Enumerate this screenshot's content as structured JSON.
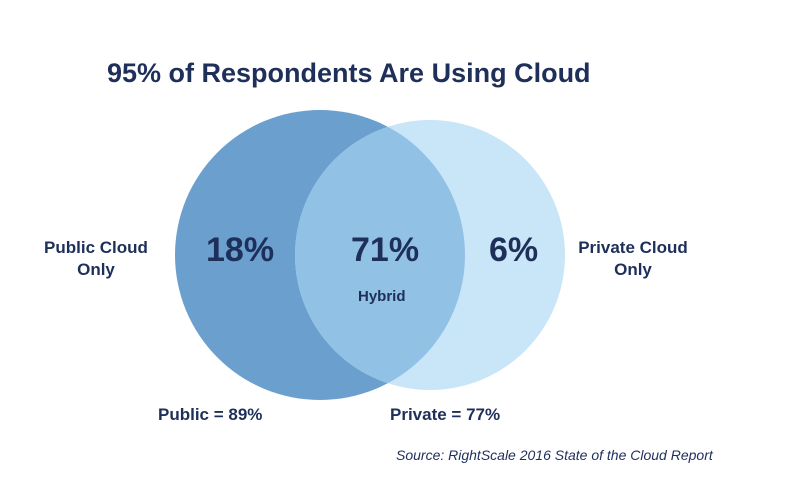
{
  "chart_data": {
    "type": "venn",
    "title": "95% of Respondents Are Using Cloud",
    "sets": [
      {
        "label_line1": "Public Cloud",
        "label_line2": "Only",
        "only_value": "18%",
        "total_label": "Public = 89%",
        "total": 89,
        "color": "#6a9fce"
      },
      {
        "label_line1": "Private Cloud",
        "label_line2": "Only",
        "only_value": "6%",
        "total_label": "Private = 77%",
        "total": 77,
        "color": "#c9e6f8"
      }
    ],
    "intersection": {
      "value": "71%",
      "label": "Hybrid",
      "color": "#92c1e6"
    },
    "source": "Source: RightScale 2016 State of the Cloud Report"
  }
}
